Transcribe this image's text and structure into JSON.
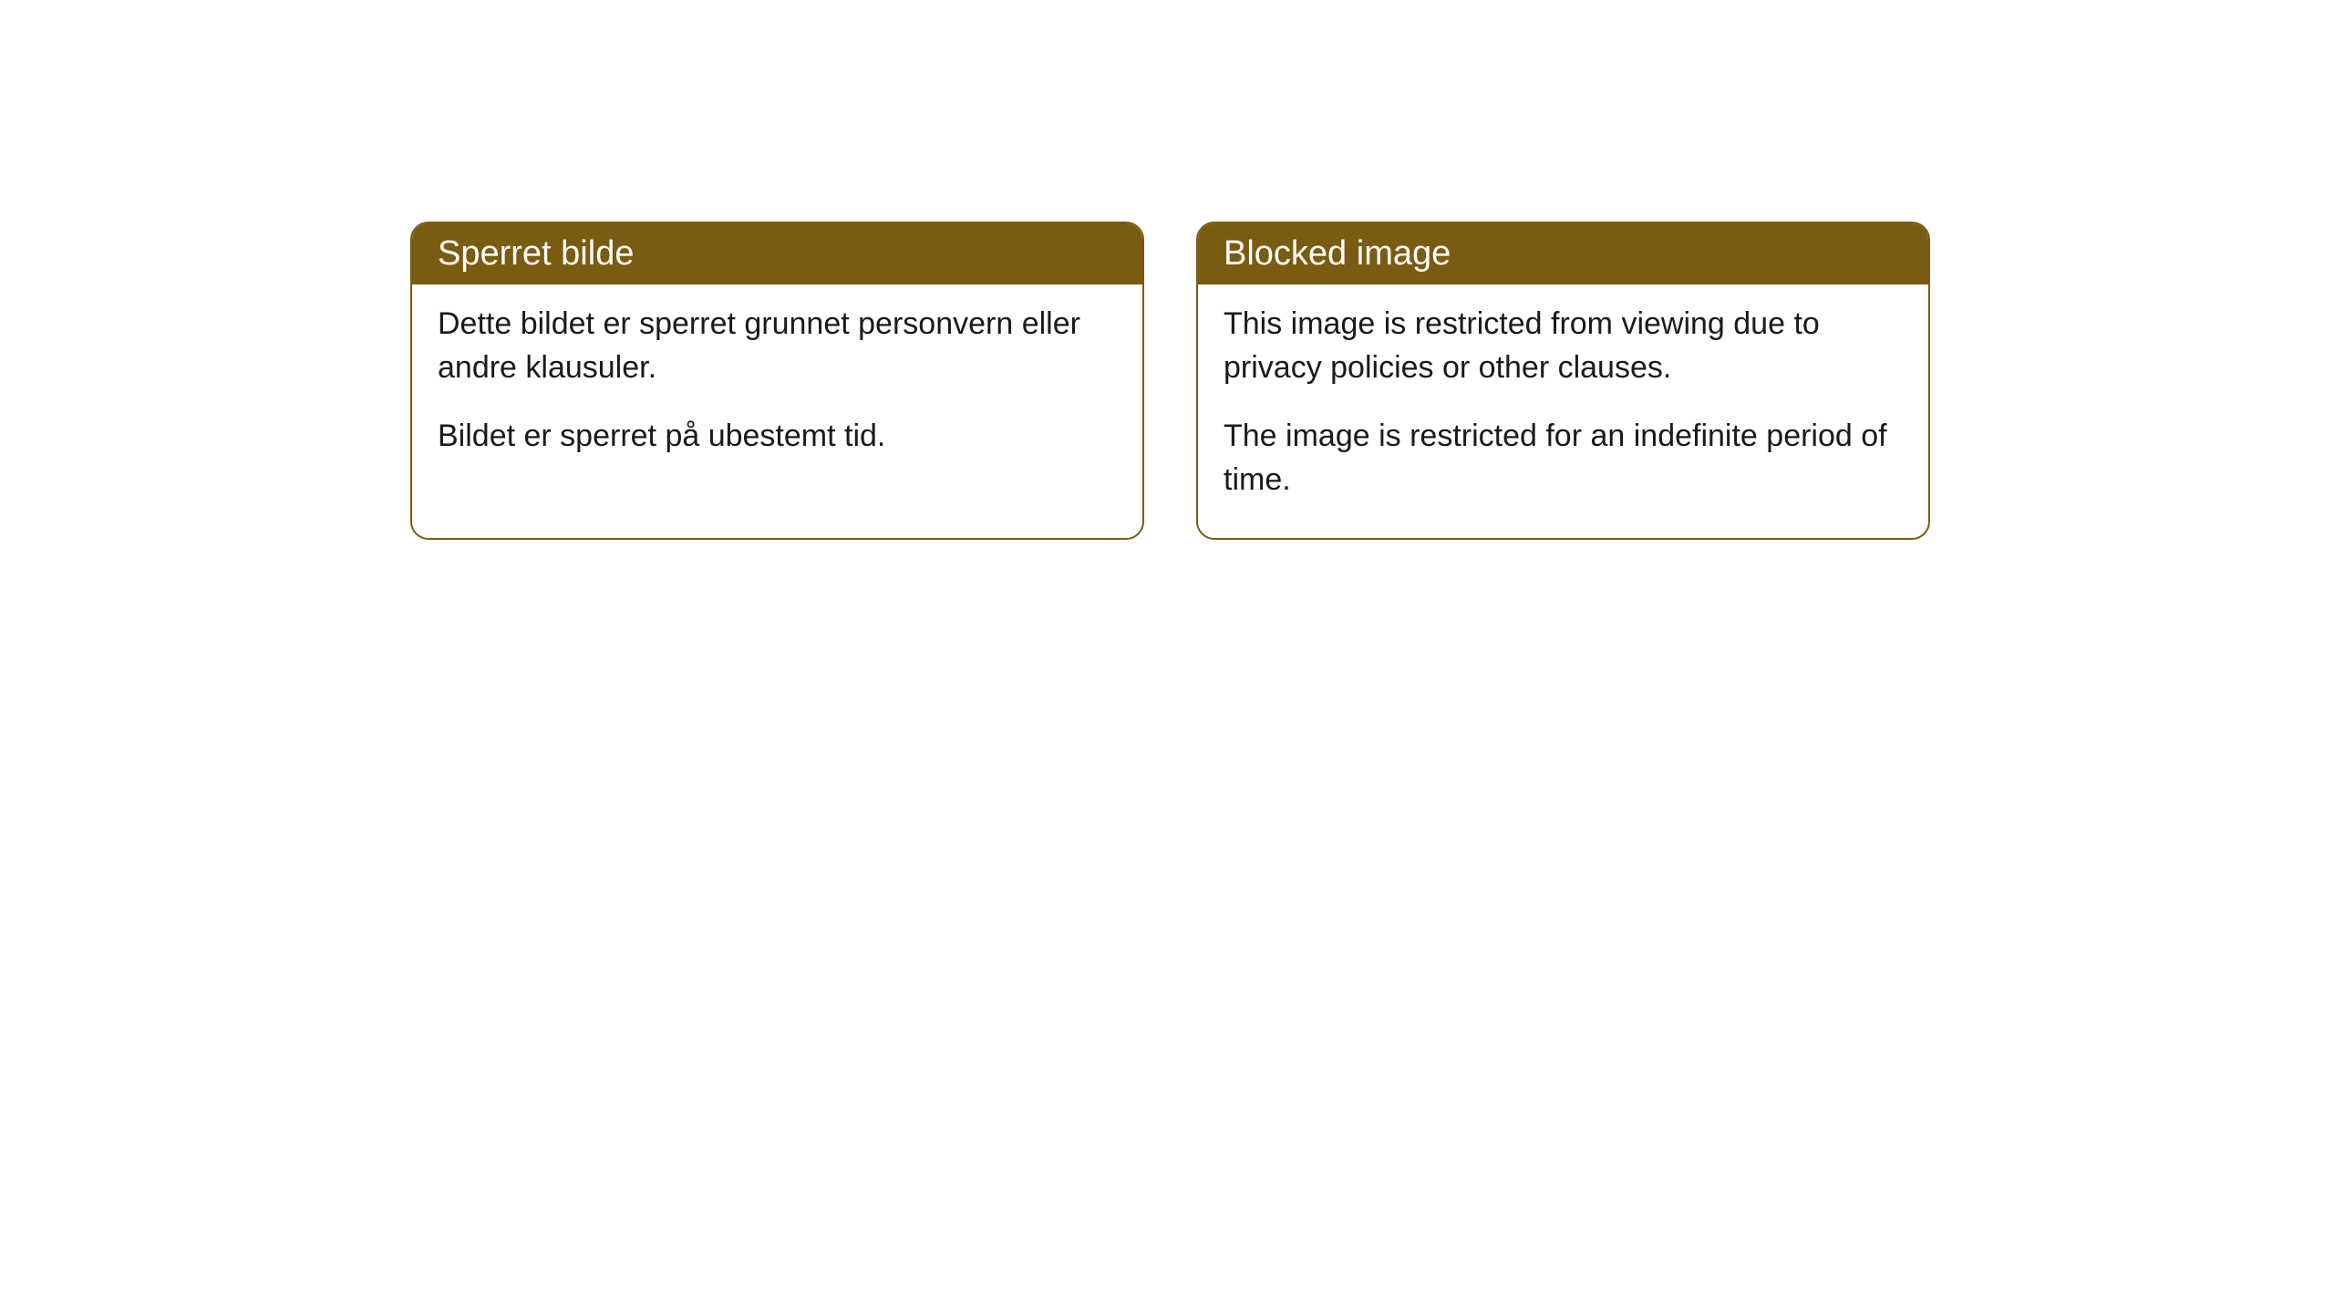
{
  "cards": [
    {
      "title": "Sperret bilde",
      "paragraph1": "Dette bildet er sperret grunnet personvern eller andre klausuler.",
      "paragraph2": "Bildet er sperret på ubestemt tid."
    },
    {
      "title": "Blocked image",
      "paragraph1": "This image is restricted from viewing due to privacy policies or other clauses.",
      "paragraph2": "The image is restricted for an indefinite period of time."
    }
  ],
  "style": {
    "header_bg_color": "#7a5b12",
    "header_text_color": "#ffffff",
    "border_color": "#7a5b12",
    "body_bg_color": "#ffffff",
    "body_text_color": "#1a1a1a",
    "border_radius": "20px",
    "title_fontsize": 38,
    "body_fontsize": 34
  }
}
